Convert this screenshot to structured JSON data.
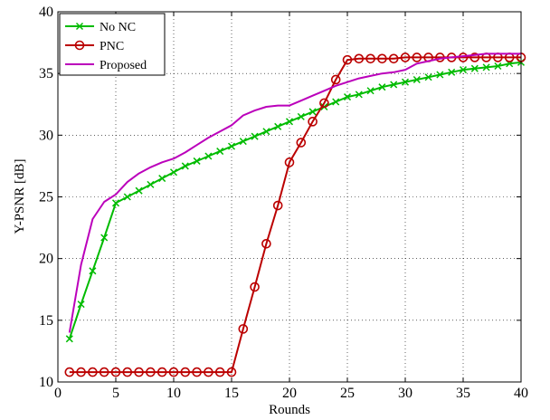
{
  "chart_data": {
    "type": "line",
    "xlabel": "Rounds",
    "ylabel": "Y-PSNR [dB]",
    "xlim": [
      0,
      40
    ],
    "ylim": [
      10,
      40
    ],
    "xticks": [
      0,
      5,
      10,
      15,
      20,
      25,
      30,
      35,
      40
    ],
    "yticks": [
      10,
      15,
      20,
      25,
      30,
      35,
      40
    ],
    "grid": true,
    "legend_position": "top-left",
    "x": [
      1,
      2,
      3,
      4,
      5,
      6,
      7,
      8,
      9,
      10,
      11,
      12,
      13,
      14,
      15,
      16,
      17,
      18,
      19,
      20,
      21,
      22,
      23,
      24,
      25,
      26,
      27,
      28,
      29,
      30,
      31,
      32,
      33,
      34,
      35,
      36,
      37,
      38,
      39,
      40
    ],
    "series": [
      {
        "name": "No NC",
        "color": "#00bb00",
        "marker": "x",
        "values": [
          13.5,
          16.3,
          19.0,
          21.7,
          24.5,
          25.0,
          25.5,
          26.0,
          26.5,
          27.0,
          27.5,
          27.9,
          28.3,
          28.7,
          29.1,
          29.5,
          29.9,
          30.3,
          30.7,
          31.1,
          31.5,
          31.9,
          32.3,
          32.7,
          33.1,
          33.3,
          33.6,
          33.9,
          34.1,
          34.3,
          34.5,
          34.7,
          34.9,
          35.1,
          35.3,
          35.4,
          35.5,
          35.6,
          35.8,
          35.9
        ]
      },
      {
        "name": "PNC",
        "color": "#bb0000",
        "marker": "o",
        "values": [
          10.8,
          10.8,
          10.8,
          10.8,
          10.8,
          10.8,
          10.8,
          10.8,
          10.8,
          10.8,
          10.8,
          10.8,
          10.8,
          10.8,
          10.8,
          14.3,
          17.7,
          21.2,
          24.3,
          27.8,
          29.4,
          31.1,
          32.6,
          34.5,
          36.1,
          36.2,
          36.2,
          36.2,
          36.2,
          36.3,
          36.3,
          36.3,
          36.3,
          36.3,
          36.3,
          36.3,
          36.3,
          36.3,
          36.3,
          36.3
        ]
      },
      {
        "name": "Proposed",
        "color": "#bb00bb",
        "marker": "none",
        "values": [
          14.0,
          19.5,
          23.2,
          24.6,
          25.2,
          26.2,
          26.9,
          27.4,
          27.8,
          28.1,
          28.6,
          29.2,
          29.8,
          30.3,
          30.8,
          31.6,
          32.0,
          32.3,
          32.4,
          32.4,
          32.8,
          33.2,
          33.6,
          34.0,
          34.3,
          34.6,
          34.8,
          35.0,
          35.1,
          35.3,
          35.8,
          36.0,
          36.2,
          36.3,
          36.4,
          36.5,
          36.6,
          36.6,
          36.6,
          36.6
        ]
      }
    ]
  }
}
